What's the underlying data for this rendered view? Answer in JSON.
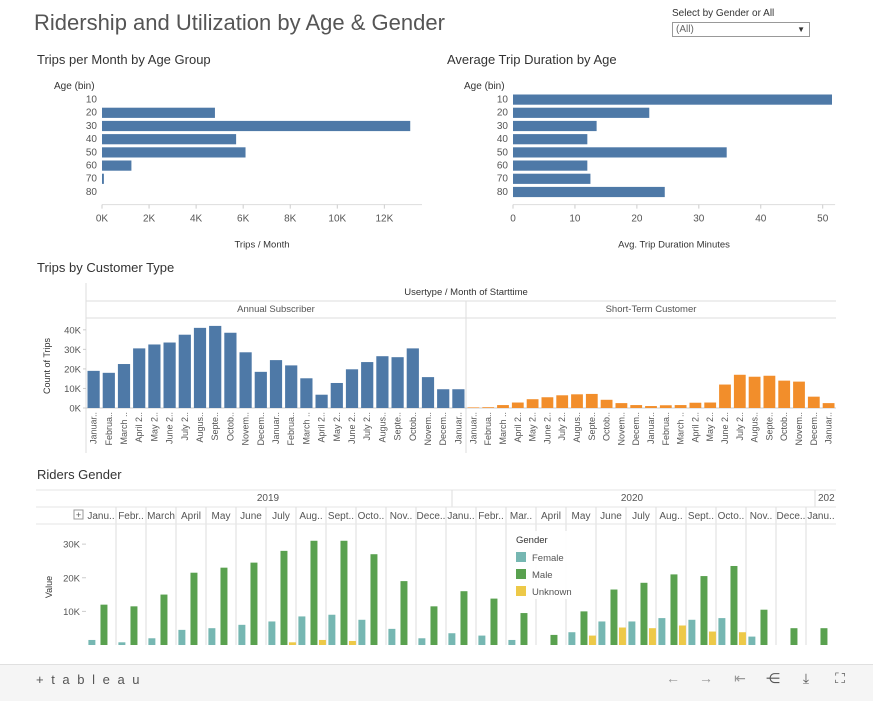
{
  "dashboard": {
    "title": "Ridership and Utilization by Age & Gender",
    "filter": {
      "label": "Select by Gender or All",
      "value": "(All)"
    }
  },
  "colors": {
    "blue": "#4e79a7",
    "orange": "#f28e2b",
    "female": "#76b7b2",
    "male": "#59a14f",
    "unknown": "#edc948"
  },
  "chart_data": [
    {
      "type": "bar",
      "title": "Trips per Month by Age Group",
      "orientation": "horizontal",
      "row_header": "Age (bin)",
      "categories": [
        "10",
        "20",
        "30",
        "40",
        "50",
        "60",
        "70",
        "80"
      ],
      "values": [
        0,
        4800,
        13100,
        5700,
        6100,
        1250,
        80,
        0
      ],
      "xlabel": "Trips / Month",
      "xticks": [
        "0K",
        "2K",
        "4K",
        "6K",
        "8K",
        "10K",
        "12K"
      ],
      "xlim": [
        0,
        13600
      ]
    },
    {
      "type": "bar",
      "title": "Average Trip Duration by Age",
      "orientation": "horizontal",
      "row_header": "Age (bin)",
      "categories": [
        "10",
        "20",
        "30",
        "40",
        "50",
        "60",
        "70",
        "80"
      ],
      "values": [
        51.5,
        22,
        13.5,
        12,
        34.5,
        12,
        12.5,
        24.5
      ],
      "xlabel": "Avg. Trip Duration Minutes",
      "xticks": [
        "0",
        "10",
        "20",
        "30",
        "40",
        "50"
      ],
      "xlim": [
        0,
        52
      ]
    },
    {
      "type": "bar",
      "title": "Trips by Customer Type",
      "header": "Usertype / Month of Starttime",
      "ylabel": "Count of Trips",
      "yticks": [
        "0K",
        "10K",
        "20K",
        "30K",
        "40K"
      ],
      "ylim": [
        0,
        44000
      ],
      "panes": [
        {
          "name": "Annual Subscriber",
          "categories": [
            "Januar..",
            "Februa..",
            "March ..",
            "April 2..",
            "May 2..",
            "June 2..",
            "July 2..",
            "Augus..",
            "Septe..",
            "Octob..",
            "Novem..",
            "Decem..",
            "Januar..",
            "Februa..",
            "March ..",
            "April 2..",
            "May 2..",
            "June 2..",
            "July 2..",
            "Augus..",
            "Septe..",
            "Octob..",
            "Novem..",
            "Decem..",
            "Januar.."
          ],
          "values": [
            19000,
            18000,
            22500,
            30500,
            32500,
            33500,
            37500,
            41000,
            42000,
            38500,
            28500,
            18500,
            24500,
            21800,
            15200,
            6800,
            12800,
            19800,
            23500,
            26500,
            26000,
            30500,
            15800,
            9600,
            9600
          ]
        },
        {
          "name": "Short-Term Customer",
          "categories": [
            "Januar..",
            "Februa..",
            "March ..",
            "April 2..",
            "May 2..",
            "June 2..",
            "July 2..",
            "Augus..",
            "Septe..",
            "Octob..",
            "Novem..",
            "Decem..",
            "Januar..",
            "Februa..",
            "March ..",
            "April 2..",
            "May 2..",
            "June 2..",
            "July 2..",
            "Augus..",
            "Septe..",
            "Octob..",
            "Novem..",
            "Decem..",
            "Januar.."
          ],
          "values": [
            300,
            400,
            1500,
            2800,
            4500,
            5500,
            6500,
            7000,
            7200,
            4200,
            2500,
            1500,
            1000,
            1400,
            1500,
            2700,
            2800,
            12000,
            17000,
            16000,
            16500,
            14000,
            13500,
            5800,
            2500
          ]
        }
      ]
    },
    {
      "type": "bar",
      "title": "Riders Gender",
      "ylabel": "Value",
      "yticks": [
        "10K",
        "20K",
        "30K"
      ],
      "ylim": [
        0,
        34500
      ],
      "years": [
        "2019",
        "2020",
        "202"
      ],
      "months": [
        "Janu..",
        "Febr..",
        "March",
        "April",
        "May",
        "June",
        "July",
        "Aug..",
        "Sept..",
        "Octo..",
        "Nov..",
        "Dece..",
        "Janu..",
        "Febr..",
        "Mar..",
        "April",
        "May",
        "June",
        "July",
        "Aug..",
        "Sept..",
        "Octo..",
        "Nov..",
        "Dece..",
        "Janu.."
      ],
      "legend": {
        "title": "Gender",
        "items": [
          "Female",
          "Male",
          "Unknown"
        ]
      },
      "series": [
        {
          "name": "Female",
          "values": [
            1500,
            800,
            2000,
            4500,
            5000,
            6000,
            7000,
            8500,
            9000,
            7500,
            4800,
            2000,
            3500,
            2800,
            1500,
            0,
            3800,
            7000,
            7000,
            8000,
            7500,
            8000,
            2500,
            0,
            0
          ]
        },
        {
          "name": "Male",
          "values": [
            12000,
            11500,
            15000,
            21500,
            23000,
            24500,
            28000,
            31000,
            31000,
            27000,
            19000,
            11500,
            16000,
            13800,
            9500,
            3000,
            10000,
            16500,
            18500,
            21000,
            20500,
            23500,
            10500,
            5000,
            5000
          ]
        },
        {
          "name": "Unknown",
          "values": [
            0,
            0,
            0,
            0,
            0,
            0,
            800,
            1500,
            1200,
            0,
            0,
            0,
            0,
            0,
            0,
            0,
            2800,
            5200,
            5000,
            5800,
            4000,
            3800,
            0,
            0,
            0
          ]
        }
      ]
    }
  ],
  "footer": {
    "logo": "+ t a b l e a u",
    "icons": [
      "undo-icon",
      "redo-icon",
      "revert-icon",
      "share-icon",
      "download-icon",
      "fullscreen-icon"
    ]
  }
}
